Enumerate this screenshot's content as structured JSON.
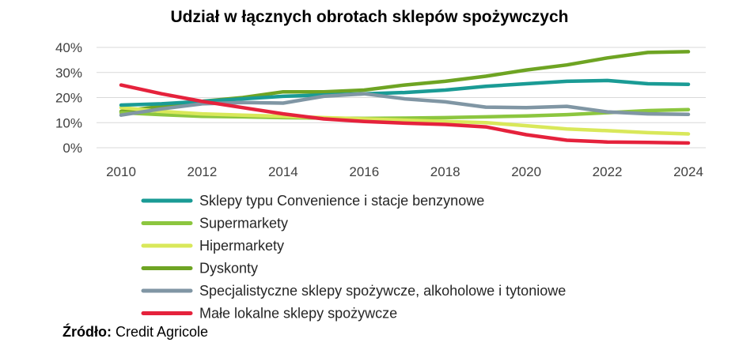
{
  "chart_data": {
    "type": "line",
    "title": "Udział w łącznych obrotach sklepów spożywczych",
    "xlabel": "",
    "ylabel": "",
    "x": [
      2010,
      2011,
      2012,
      2013,
      2014,
      2015,
      2016,
      2017,
      2018,
      2019,
      2020,
      2021,
      2022,
      2023,
      2024
    ],
    "x_ticks": [
      "2010",
      "2012",
      "2014",
      "2016",
      "2018",
      "2020",
      "2022",
      "2024"
    ],
    "x_tick_values": [
      2010,
      2012,
      2014,
      2016,
      2018,
      2020,
      2022,
      2024
    ],
    "y_ticks": [
      "0%",
      "10%",
      "20%",
      "30%",
      "40%"
    ],
    "y_tick_values": [
      0,
      10,
      20,
      30,
      40
    ],
    "xlim": [
      2010,
      2024
    ],
    "ylim": [
      0,
      40
    ],
    "grid": true,
    "legend_position": "bottom",
    "series": [
      {
        "name": "Sklepy typu Convenience i stacje benzynowe",
        "color": "#1a9b95",
        "values": [
          17,
          17.5,
          18.5,
          19.5,
          20.5,
          21,
          21.5,
          22,
          23,
          24.5,
          25.5,
          26.5,
          26.8,
          25.5,
          25.3
        ]
      },
      {
        "name": "Supermarkety",
        "color": "#8cc63f",
        "values": [
          14,
          13.2,
          12.5,
          12.3,
          12,
          11.8,
          11.7,
          11.8,
          12,
          12.3,
          12.7,
          13.2,
          14,
          14.8,
          15.2
        ]
      },
      {
        "name": "Hipermarkety",
        "color": "#d9e85a",
        "values": [
          16,
          14.5,
          13.5,
          13,
          12.5,
          12,
          11.5,
          11,
          10.5,
          10,
          8.8,
          7.5,
          6.8,
          6,
          5.5
        ]
      },
      {
        "name": "Dyskonty",
        "color": "#6ea423",
        "values": [
          14.5,
          16.5,
          18.5,
          20,
          22.3,
          22.3,
          23,
          25,
          26.5,
          28.5,
          31,
          33,
          35.8,
          38,
          38.3
        ]
      },
      {
        "name": "Specjalistyczne sklepy spożywcze, alkoholowe i tytoniowe",
        "color": "#8096a4",
        "values": [
          13,
          15.5,
          17.5,
          18,
          17.8,
          20.5,
          21.5,
          19.5,
          18.3,
          16.2,
          16,
          16.5,
          14.3,
          13.5,
          13.3
        ]
      },
      {
        "name": "Małe lokalne sklepy spożywcze",
        "color": "#e5223c",
        "values": [
          25,
          21.5,
          18.5,
          16,
          13.5,
          11.5,
          10.5,
          9.8,
          9.3,
          8.3,
          5.2,
          3,
          2.3,
          2.1,
          1.9
        ]
      }
    ]
  },
  "source": {
    "label": "Źródło:",
    "text": "Credit Agricole"
  }
}
